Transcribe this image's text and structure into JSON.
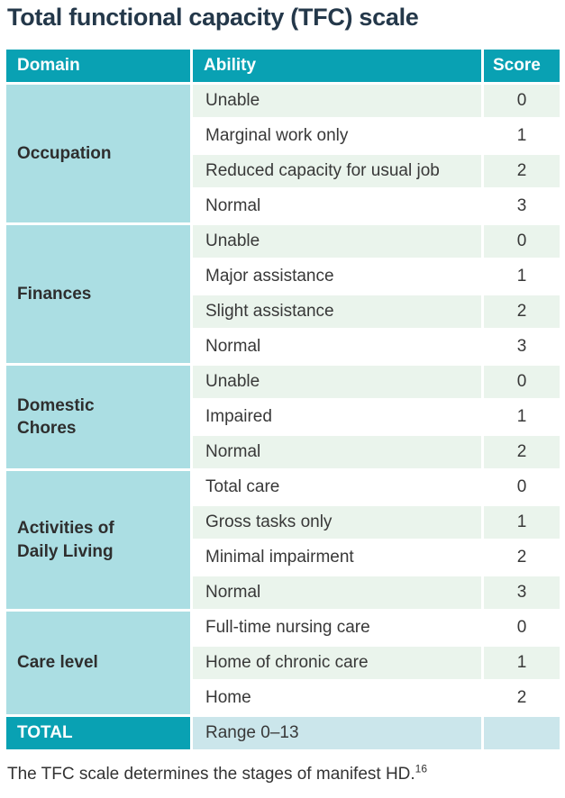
{
  "title": "Total functional capacity (TFC) scale",
  "table": {
    "headers": {
      "domain": "Domain",
      "ability": "Ability",
      "score": "Score"
    },
    "groups": [
      {
        "domain": "Occupation",
        "rows": [
          {
            "ability": "Unable",
            "score": "0"
          },
          {
            "ability": "Marginal work only",
            "score": "1"
          },
          {
            "ability": "Reduced capacity for usual job",
            "score": "2"
          },
          {
            "ability": "Normal",
            "score": "3"
          }
        ]
      },
      {
        "domain": "Finances",
        "rows": [
          {
            "ability": "Unable",
            "score": "0"
          },
          {
            "ability": "Major assistance",
            "score": "1"
          },
          {
            "ability": "Slight assistance",
            "score": "2"
          },
          {
            "ability": "Normal",
            "score": "3"
          }
        ]
      },
      {
        "domain": "Domestic Chores",
        "rows": [
          {
            "ability": "Unable",
            "score": "0"
          },
          {
            "ability": "Impaired",
            "score": "1"
          },
          {
            "ability": "Normal",
            "score": "2"
          }
        ]
      },
      {
        "domain": "Activities of Daily Living",
        "rows": [
          {
            "ability": "Total care",
            "score": "0"
          },
          {
            "ability": "Gross tasks only",
            "score": "1"
          },
          {
            "ability": "Minimal impairment",
            "score": "2"
          },
          {
            "ability": "Normal",
            "score": "3"
          }
        ]
      },
      {
        "domain": "Care level",
        "rows": [
          {
            "ability": "Full-time nursing care",
            "score": "0"
          },
          {
            "ability": "Home of chronic care",
            "score": "1"
          },
          {
            "ability": "Home",
            "score": "2"
          }
        ]
      }
    ],
    "total": {
      "label": "TOTAL",
      "ability": "Range 0–13",
      "score": ""
    }
  },
  "footnote": {
    "text": "The TFC scale determines the stages of manifest HD.",
    "reference": "16"
  },
  "colors": {
    "header_teal": "#09a1b3",
    "domain_aqua": "#abdee3",
    "row_green": "#eaf4ec",
    "row_white": "#ffffff",
    "total_blue": "#cbe6eb",
    "title_navy": "#24384a",
    "body_text": "#383838"
  },
  "chart_data": {
    "type": "table",
    "title": "Total functional capacity (TFC) scale",
    "columns": [
      "Domain",
      "Ability",
      "Score"
    ],
    "rows": [
      [
        "Occupation",
        "Unable",
        0
      ],
      [
        "Occupation",
        "Marginal work only",
        1
      ],
      [
        "Occupation",
        "Reduced capacity for usual job",
        2
      ],
      [
        "Occupation",
        "Normal",
        3
      ],
      [
        "Finances",
        "Unable",
        0
      ],
      [
        "Finances",
        "Major assistance",
        1
      ],
      [
        "Finances",
        "Slight assistance",
        2
      ],
      [
        "Finances",
        "Normal",
        3
      ],
      [
        "Domestic Chores",
        "Unable",
        0
      ],
      [
        "Domestic Chores",
        "Impaired",
        1
      ],
      [
        "Domestic Chores",
        "Normal",
        2
      ],
      [
        "Activities of Daily Living",
        "Total care",
        0
      ],
      [
        "Activities of Daily Living",
        "Gross tasks only",
        1
      ],
      [
        "Activities of Daily Living",
        "Minimal impairment",
        2
      ],
      [
        "Activities of Daily Living",
        "Normal",
        3
      ],
      [
        "Care level",
        "Full-time nursing care",
        0
      ],
      [
        "Care level",
        "Home of chronic care",
        1
      ],
      [
        "Care level",
        "Home",
        2
      ],
      [
        "TOTAL",
        "Range 0–13",
        null
      ]
    ]
  }
}
